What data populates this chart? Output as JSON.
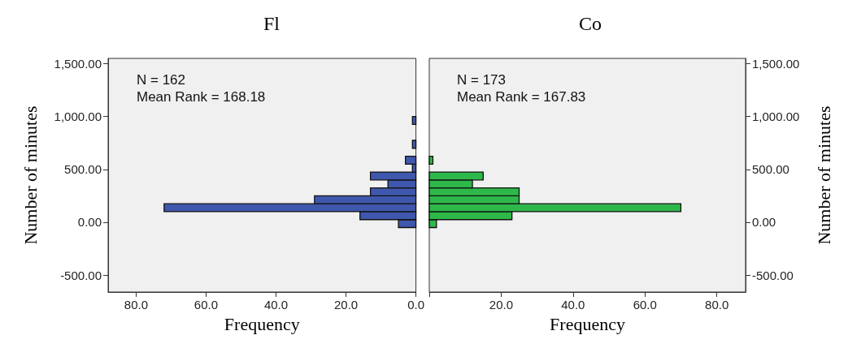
{
  "chart_data": [
    {
      "type": "histogram",
      "orientation": "horizontal",
      "title": "Fl",
      "xlabel": "Frequency",
      "ylabel": "Number of minutes",
      "annotations": [
        "N = 162",
        "Mean Rank = 168.18"
      ],
      "bins": [
        -50,
        25,
        100,
        175,
        250,
        325,
        400,
        475,
        550,
        625,
        700,
        775,
        850,
        925,
        1000
      ],
      "values": [
        5,
        16,
        72,
        29,
        13,
        8,
        13,
        1,
        3,
        0,
        1,
        0,
        0,
        1
      ],
      "color": "#3f58ad",
      "xlim": [
        88,
        0
      ],
      "xticks": [
        {
          "value": 80,
          "label": "80.0"
        },
        {
          "value": 60,
          "label": "60.0"
        },
        {
          "value": 40,
          "label": "40.0"
        },
        {
          "value": 20,
          "label": "20.0"
        },
        {
          "value": 0,
          "label": "0.0"
        }
      ],
      "ylim": [
        -660,
        1550
      ],
      "yticks": [
        {
          "value": -500,
          "label": "-500.00"
        },
        {
          "value": 0,
          "label": "0.00"
        },
        {
          "value": 500,
          "label": "500.00"
        },
        {
          "value": 1000,
          "label": "1,000.00"
        },
        {
          "value": 1500,
          "label": "1,500.00"
        }
      ],
      "grid": false
    },
    {
      "type": "histogram",
      "orientation": "horizontal",
      "title": "Co",
      "xlabel": "Frequency",
      "ylabel": "Number of minutes",
      "annotations": [
        "N = 173",
        "Mean Rank = 167.83"
      ],
      "bins": [
        -50,
        25,
        100,
        175,
        250,
        325,
        400,
        475,
        550,
        625,
        700,
        775,
        850,
        925,
        1000
      ],
      "values": [
        2,
        23,
        70,
        25,
        25,
        12,
        15,
        0,
        1,
        0,
        0,
        0,
        0,
        0
      ],
      "color": "#2fb84a",
      "xlim": [
        0,
        88
      ],
      "xticks": [
        {
          "value": 0,
          "label": null
        },
        {
          "value": 20,
          "label": "20.0"
        },
        {
          "value": 40,
          "label": "40.0"
        },
        {
          "value": 60,
          "label": "60.0"
        },
        {
          "value": 80,
          "label": "80.0"
        }
      ],
      "ylim": [
        -660,
        1550
      ],
      "yticks": [
        {
          "value": -500,
          "label": "-500.00"
        },
        {
          "value": 0,
          "label": "0.00"
        },
        {
          "value": 500,
          "label": "500.00"
        },
        {
          "value": 1000,
          "label": "1,000.00"
        },
        {
          "value": 1500,
          "label": "1,500.00"
        }
      ],
      "grid": false
    }
  ]
}
